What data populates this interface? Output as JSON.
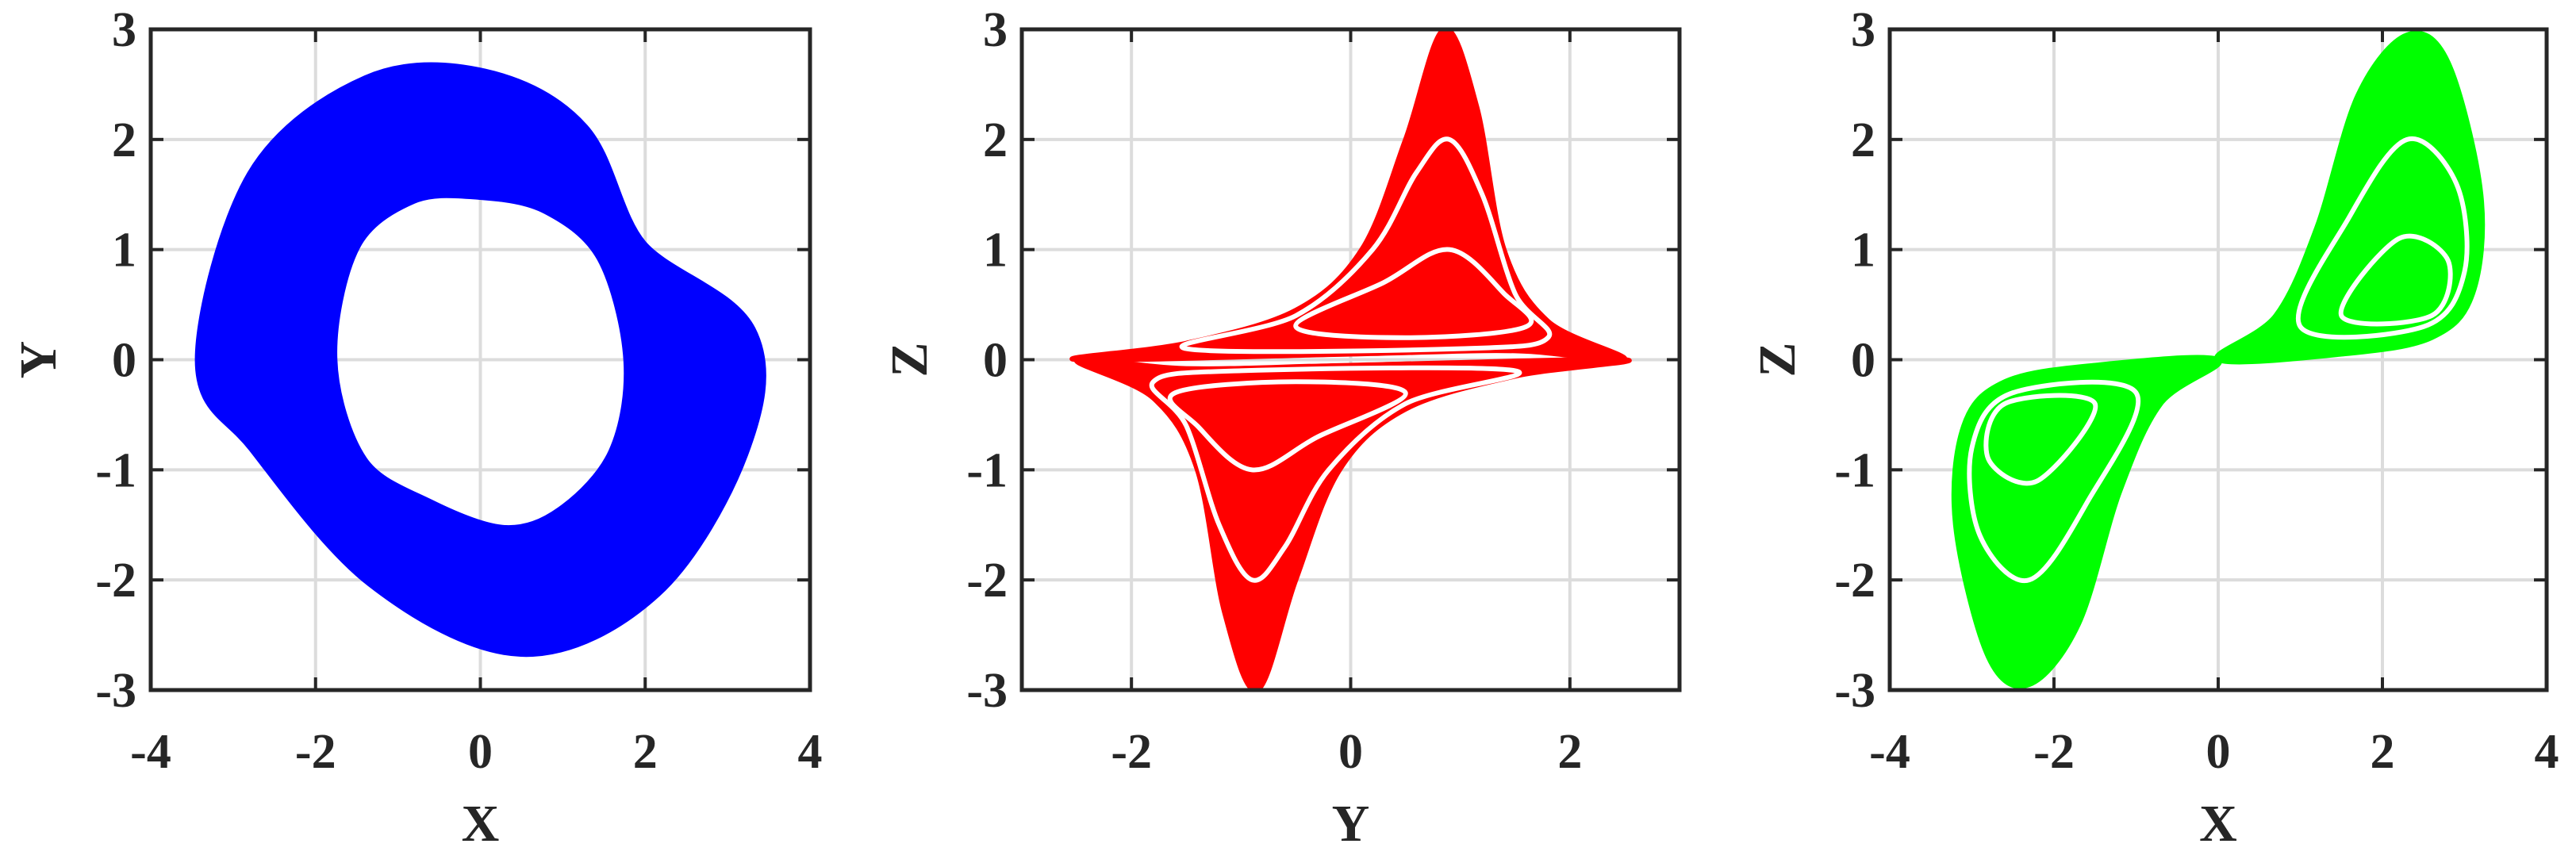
{
  "chart_data": [
    {
      "type": "line",
      "xlabel": "X",
      "ylabel": "Y",
      "grid": true,
      "xlim": [
        -4,
        4
      ],
      "xticks": [
        -4,
        -2,
        0,
        2,
        4
      ],
      "ylim": [
        -3,
        3
      ],
      "yticks": [
        -3,
        -2,
        -1,
        0,
        1,
        2,
        3
      ],
      "series": [
        {
          "color": "#0000ff",
          "x": [
            -3.2,
            -2.6,
            -1.3,
            0,
            1.1,
            1.8,
            3.1,
            3.0,
            2.0,
            0.5,
            -1.2,
            -2.6
          ],
          "values": [
            0,
            1.6,
            2.4,
            2.45,
            2.0,
            0.95,
            0.2,
            -0.8,
            -2.0,
            -2.5,
            -1.9,
            -0.7
          ]
        },
        {
          "color": "#0000ff",
          "x": [
            -2.8,
            -2.3,
            -1.17,
            0,
            1.03,
            1.75,
            2.74,
            2.6,
            1.7,
            0.43,
            -1.03,
            -2.27
          ],
          "values": [
            0,
            1.43,
            2.14,
            2.19,
            1.84,
            0.97,
            0.13,
            -0.83,
            -1.84,
            -2.24,
            -1.75,
            -0.8
          ]
        },
        {
          "color": "#0000ff",
          "x": [
            -2.4,
            -2.0,
            -1.03,
            0,
            0.97,
            1.7,
            2.37,
            2.2,
            1.4,
            0.37,
            -0.87,
            -1.93
          ],
          "values": [
            0,
            1.27,
            1.87,
            1.92,
            1.67,
            0.98,
            0.07,
            -0.87,
            -1.67,
            -1.97,
            -1.6,
            -0.9
          ]
        },
        {
          "color": "#0000ff",
          "x": [
            -2.0,
            -1.7,
            -0.9,
            0,
            0.9,
            1.65,
            2.0,
            1.8,
            1.1,
            0.3,
            -0.7,
            -1.6
          ],
          "values": [
            0,
            1.1,
            1.6,
            1.65,
            1.5,
            1.0,
            0,
            -0.9,
            -1.5,
            -1.7,
            -1.45,
            -1.0
          ]
        }
      ]
    },
    {
      "type": "line",
      "xlabel": "Y",
      "ylabel": "Z",
      "grid": true,
      "xlim": [
        -3,
        3
      ],
      "xticks": [
        -2,
        0,
        2
      ],
      "ylim": [
        -3,
        3
      ],
      "yticks": [
        -3,
        -2,
        -1,
        0,
        1,
        2,
        3
      ],
      "series": [
        {
          "color": "#ff0000",
          "fill": true,
          "x": [
            -2.5,
            -1.5,
            -0.5,
            0.1,
            0.5,
            0.85,
            1.15,
            1.4,
            1.8,
            2.5,
            1.5,
            0
          ],
          "values": [
            0,
            0.15,
            0.45,
            1.0,
            2.0,
            3.0,
            2.3,
            1.0,
            0.35,
            0,
            0.08,
            0.05
          ]
        },
        {
          "color": "#ff0000",
          "fill": true,
          "x": [
            2.5,
            1.5,
            0.5,
            -0.1,
            -0.5,
            -0.85,
            -1.15,
            -1.4,
            -1.8,
            -2.5,
            -1.5,
            0
          ],
          "values": [
            0,
            -0.15,
            -0.45,
            -1.0,
            -2.0,
            -3.0,
            -2.3,
            -1.0,
            -0.35,
            0,
            -0.08,
            -0.05
          ]
        },
        {
          "color": "#ffffff",
          "x": [
            -1.5,
            -0.5,
            0.2,
            0.6,
            0.9,
            1.2,
            1.5,
            1.8,
            1.0
          ],
          "values": [
            0.1,
            0.4,
            1.0,
            1.7,
            2.0,
            1.5,
            0.6,
            0.2,
            0.1
          ]
        },
        {
          "color": "#ffffff",
          "x": [
            -0.5,
            0.3,
            0.9,
            1.4,
            1.6,
            0.5
          ],
          "values": [
            0.3,
            0.7,
            1.0,
            0.6,
            0.3,
            0.2
          ]
        },
        {
          "color": "#ffffff",
          "x": [
            1.5,
            0.5,
            -0.2,
            -0.6,
            -0.9,
            -1.2,
            -1.5,
            -1.8,
            -1.0
          ],
          "values": [
            -0.1,
            -0.4,
            -1.0,
            -1.7,
            -2.0,
            -1.5,
            -0.6,
            -0.2,
            -0.1
          ]
        },
        {
          "color": "#ffffff",
          "x": [
            0.5,
            -0.3,
            -0.9,
            -1.4,
            -1.6,
            -0.5
          ],
          "values": [
            -0.3,
            -0.7,
            -1.0,
            -0.6,
            -0.3,
            -0.2
          ]
        }
      ]
    },
    {
      "type": "line",
      "xlabel": "X",
      "ylabel": "Z",
      "grid": true,
      "xlim": [
        -4,
        4
      ],
      "xticks": [
        -4,
        -2,
        0,
        2,
        4
      ],
      "ylim": [
        -3,
        3
      ],
      "yticks": [
        -3,
        -2,
        -1,
        0,
        1,
        2,
        3
      ],
      "series": [
        {
          "color": "#00ff00",
          "fill": true,
          "x": [
            0,
            0.7,
            1.2,
            1.7,
            2.3,
            2.8,
            3.2,
            3.1,
            2.6,
            1.5
          ],
          "values": [
            0,
            0.4,
            1.2,
            2.4,
            2.95,
            2.7,
            1.5,
            0.6,
            0.2,
            0.05
          ]
        },
        {
          "color": "#00ff00",
          "fill": true,
          "x": [
            0,
            -0.7,
            -1.2,
            -1.7,
            -2.3,
            -2.8,
            -3.2,
            -3.1,
            -2.6,
            -1.5
          ],
          "values": [
            0,
            -0.4,
            -1.2,
            -2.4,
            -2.95,
            -2.7,
            -1.5,
            -0.6,
            -0.2,
            -0.05
          ]
        },
        {
          "color": "#ffffff",
          "x": [
            1.0,
            1.6,
            2.3,
            2.9,
            3.0,
            2.5
          ],
          "values": [
            0.3,
            1.3,
            2.0,
            1.6,
            0.8,
            0.3
          ]
        },
        {
          "color": "#ffffff",
          "x": [
            1.5,
            2.2,
            2.8,
            2.6
          ],
          "values": [
            0.4,
            1.1,
            0.9,
            0.4
          ]
        },
        {
          "color": "#ffffff",
          "x": [
            -1.0,
            -1.6,
            -2.3,
            -2.9,
            -3.0,
            -2.5
          ],
          "values": [
            -0.3,
            -1.3,
            -2.0,
            -1.6,
            -0.8,
            -0.3
          ]
        },
        {
          "color": "#ffffff",
          "x": [
            -1.5,
            -2.2,
            -2.8,
            -2.6
          ],
          "values": [
            -0.4,
            -1.1,
            -0.9,
            -0.4
          ]
        }
      ]
    }
  ]
}
